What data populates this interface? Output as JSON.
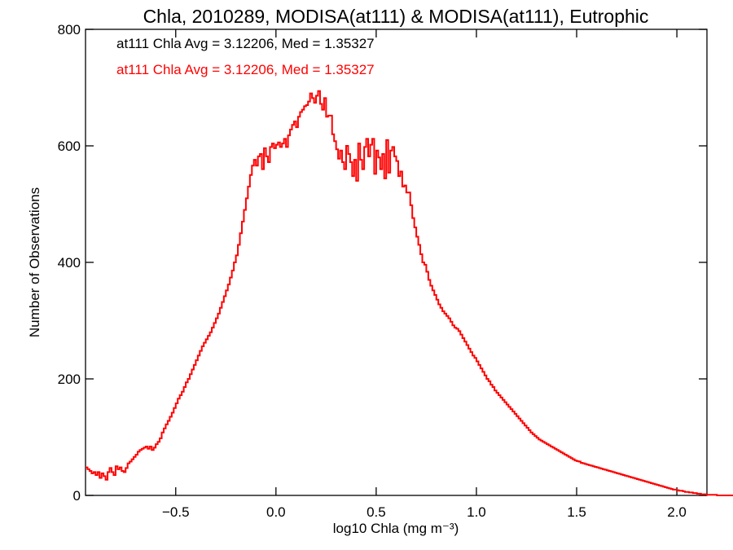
{
  "chart_data": {
    "type": "histogram-step",
    "title": "Chla, 2010289, MODISA(at111) & MODISA(at111), Eutrophic",
    "xlabel": "log10 Chla (mg m⁻³)",
    "ylabel": "Number of Observations",
    "xlim": [
      -0.95,
      2.15
    ],
    "ylim": [
      0,
      800
    ],
    "xticks": [
      -0.5,
      0.0,
      0.5,
      1.0,
      1.5,
      2.0
    ],
    "xtick_labels": [
      "−0.5",
      "0.0",
      "0.5",
      "1.0",
      "1.5",
      "2.0"
    ],
    "yticks": [
      0,
      200,
      400,
      600,
      800
    ],
    "ytick_labels": [
      "0",
      "200",
      "400",
      "600",
      "800"
    ],
    "grid": false,
    "annotations": [
      {
        "text": "at111 Chla Avg = 3.12206, Med = 1.35327",
        "color": "#000000"
      },
      {
        "text": "at111 Chla Avg = 3.12206, Med = 1.35327",
        "color": "#ff0000"
      }
    ],
    "series": [
      {
        "color": "#ff0000",
        "bin_width": 0.01,
        "bin_start": -0.95,
        "values": [
          48,
          45,
          42,
          38,
          40,
          35,
          40,
          30,
          38,
          33,
          27,
          40,
          47,
          40,
          35,
          50,
          45,
          48,
          42,
          40,
          47,
          55,
          58,
          62,
          66,
          70,
          75,
          78,
          80,
          82,
          84,
          80,
          84,
          78,
          82,
          88,
          92,
          98,
          108,
          115,
          122,
          128,
          135,
          142,
          150,
          158,
          166,
          172,
          178,
          186,
          194,
          200,
          208,
          216,
          224,
          232,
          240,
          248,
          256,
          262,
          268,
          274,
          280,
          288,
          296,
          304,
          312,
          322,
          332,
          342,
          352,
          362,
          374,
          386,
          400,
          412,
          430,
          450,
          470,
          490,
          510,
          530,
          550,
          566,
          576,
          566,
          582,
          586,
          560,
          596,
          582,
          572,
          598,
          604,
          596,
          602,
          606,
          598,
          604,
          612,
          598,
          618,
          628,
          636,
          642,
          632,
          650,
          658,
          662,
          668,
          670,
          676,
          690,
          682,
          674,
          686,
          694,
          672,
          662,
          682,
          650,
          652,
          652,
          620,
          608,
          594,
          578,
          592,
          572,
          560,
          600,
          586,
          572,
          548,
          576,
          540,
          604,
          576,
          560,
          598,
          612,
          582,
          602,
          612,
          552,
          592,
          580,
          560,
          586,
          544,
          610,
          554,
          592,
          598,
          582,
          574,
          548,
          556,
          530,
          532,
          520,
          520,
          498,
          476,
          460,
          444,
          430,
          414,
          400,
          396,
          384,
          370,
          360,
          352,
          344,
          336,
          328,
          322,
          316,
          312,
          308,
          304,
          298,
          292,
          288,
          286,
          282,
          276,
          270,
          264,
          258,
          252,
          246,
          240,
          236,
          230,
          224,
          218,
          212,
          206,
          200,
          196,
          190,
          186,
          180,
          176,
          172,
          168,
          164,
          160,
          156,
          152,
          148,
          144,
          140,
          136,
          132,
          128,
          124,
          120,
          116,
          112,
          108,
          105,
          102,
          99,
          96,
          94,
          92,
          90,
          88,
          86,
          84,
          82,
          80,
          78,
          76,
          74,
          72,
          70,
          68,
          66,
          64,
          62,
          60,
          59,
          58,
          56,
          55,
          54,
          53,
          52,
          51,
          50,
          49,
          48,
          47,
          46,
          45,
          44,
          43,
          42,
          41,
          40,
          39,
          38,
          37,
          36,
          35,
          34,
          33,
          32,
          31,
          30,
          29,
          28,
          27,
          26,
          25,
          24,
          23,
          22,
          21,
          20,
          19,
          18,
          17,
          16,
          15,
          14,
          13,
          12,
          11,
          10,
          10,
          9,
          8,
          8,
          7,
          6,
          6,
          5,
          5,
          4,
          4,
          3,
          3,
          2,
          2,
          2,
          1,
          1,
          1,
          1,
          1,
          0,
          0,
          0,
          0,
          0,
          0,
          0,
          0,
          0,
          0,
          0,
          0,
          0,
          0
        ]
      }
    ]
  }
}
